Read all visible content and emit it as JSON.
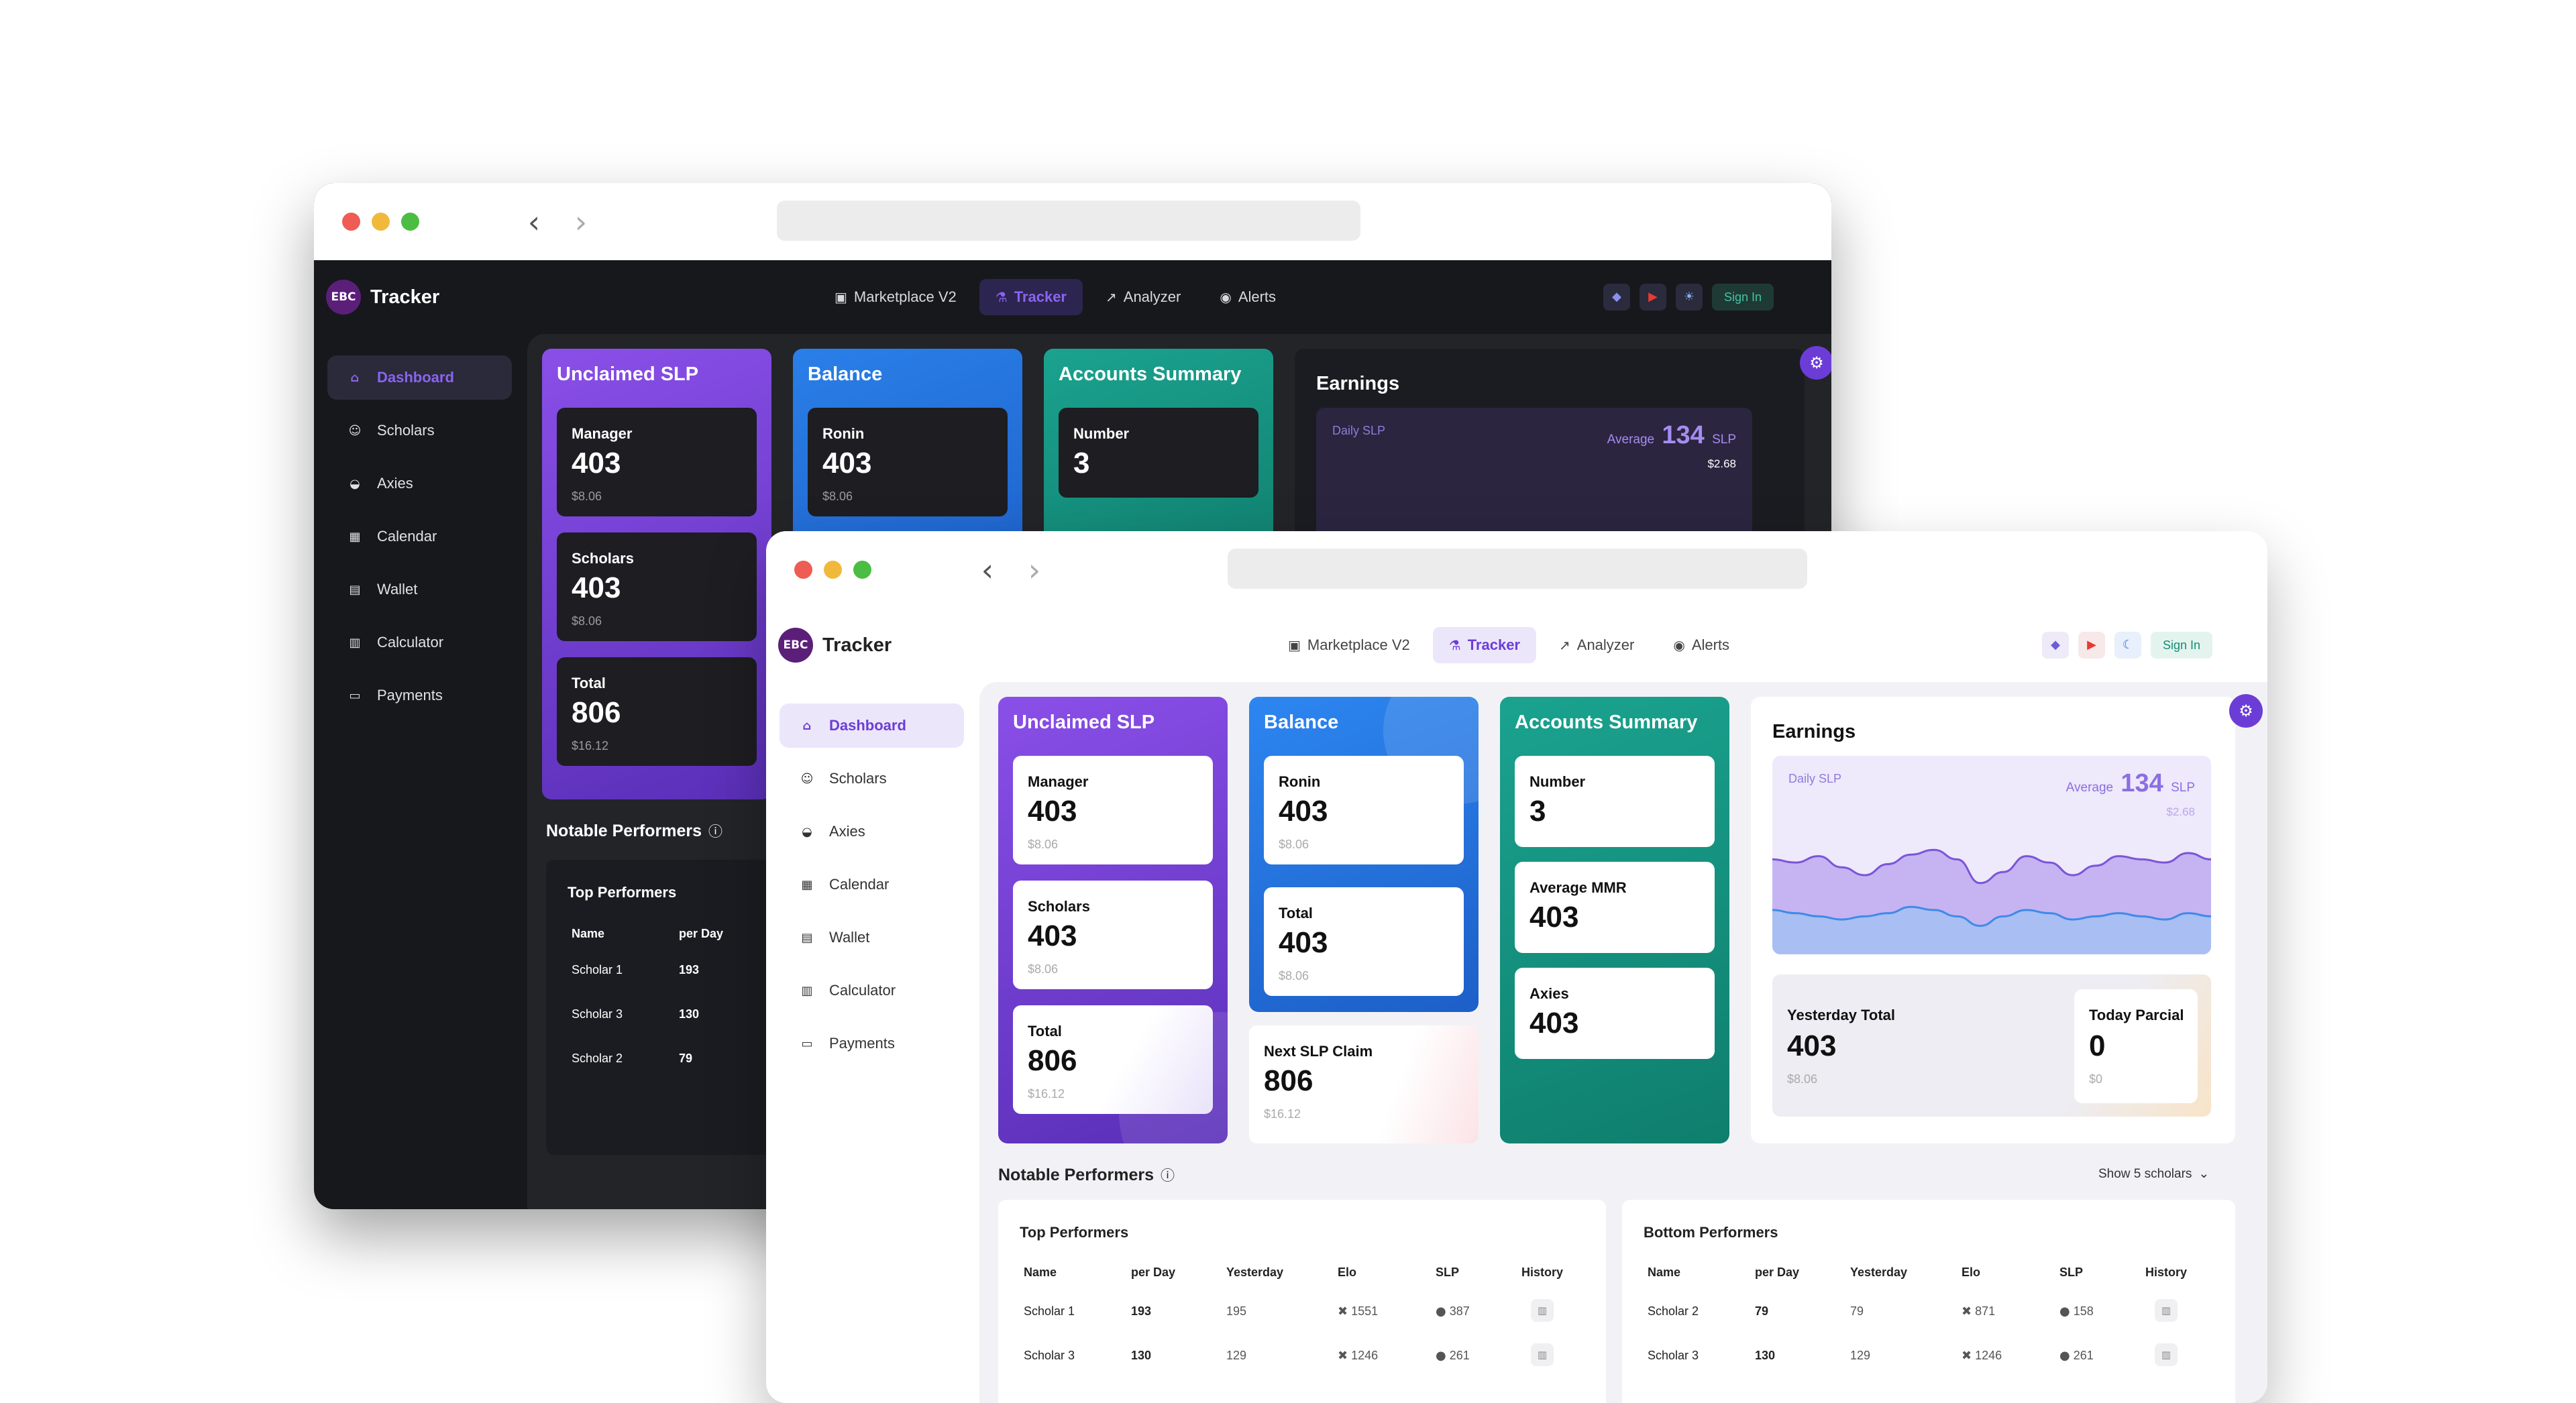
{
  "colors": {
    "accent": "#6c3dd6",
    "slp_purple": "#7c4de0",
    "balance_blue": "#2a7fe8",
    "summary_teal": "#14907d",
    "dot_red": "#ee5c53",
    "dot_yellow": "#f0b93c",
    "dot_green": "#4cbd43"
  },
  "browser": {
    "back_icon": "chevron-left-icon",
    "forward_icon": "chevron-right-icon"
  },
  "app": {
    "logo_text": "EBC",
    "name": "Tracker"
  },
  "topnav": [
    {
      "label": "Marketplace V2",
      "icon": "storefront-icon"
    },
    {
      "label": "Tracker",
      "icon": "flask-icon",
      "active": true
    },
    {
      "label": "Analyzer",
      "icon": "chart-icon"
    },
    {
      "label": "Alerts",
      "icon": "broadcast-icon"
    }
  ],
  "actions": {
    "sign_in": "Sign In",
    "icons": [
      "discord-icon",
      "youtube-icon",
      "theme-toggle-icon"
    ]
  },
  "sidebar": [
    {
      "label": "Dashboard",
      "icon": "home-icon",
      "active": true
    },
    {
      "label": "Scholars",
      "icon": "user-icon"
    },
    {
      "label": "Axies",
      "icon": "axie-icon"
    },
    {
      "label": "Calendar",
      "icon": "calendar-icon"
    },
    {
      "label": "Wallet",
      "icon": "wallet-icon"
    },
    {
      "label": "Calculator",
      "icon": "calculator-icon"
    },
    {
      "label": "Payments",
      "icon": "card-icon"
    }
  ],
  "unclaimed": {
    "title": "Unclaimed SLP",
    "items": [
      {
        "label": "Manager",
        "value": "403",
        "sub": "$8.06"
      },
      {
        "label": "Scholars",
        "value": "403",
        "sub": "$8.06"
      },
      {
        "label": "Total",
        "value": "806",
        "sub": "$16.12"
      }
    ]
  },
  "balance": {
    "title": "Balance",
    "items": [
      {
        "label": "Ronin",
        "value": "403",
        "sub": "$8.06"
      },
      {
        "label": "Total",
        "value": "403",
        "sub": "$8.06"
      }
    ],
    "next_claim": {
      "label": "Next SLP Claim",
      "value": "806",
      "sub": "$16.12"
    }
  },
  "summary": {
    "title": "Accounts Summary",
    "items": [
      {
        "label": "Number",
        "value": "3"
      },
      {
        "label": "Average MMR",
        "value": "403"
      },
      {
        "label": "Axies",
        "value": "403"
      }
    ]
  },
  "earnings": {
    "title": "Earnings",
    "chart_label": "Daily SLP",
    "average_label": "Average",
    "average_value": "134",
    "average_unit": "SLP",
    "average_usd": "$2.68",
    "yesterday": {
      "label": "Yesterday Total",
      "value": "403",
      "sub": "$8.06"
    },
    "today": {
      "label": "Today Parcial",
      "value": "0",
      "sub": "$0"
    }
  },
  "chart_data": {
    "type": "area",
    "title": "Daily SLP",
    "series": [
      {
        "values": [
          60,
          58,
          62,
          55,
          50,
          57,
          63,
          66,
          60,
          45,
          52,
          62,
          58,
          50,
          56,
          62,
          60,
          58,
          64,
          60
        ]
      },
      {
        "values": [
          28,
          26,
          24,
          22,
          24,
          26,
          30,
          28,
          24,
          18,
          24,
          28,
          26,
          22,
          24,
          26,
          24,
          22,
          26,
          24
        ]
      }
    ],
    "ylim": [
      0,
      100
    ],
    "grid": false,
    "legend": "none"
  },
  "notable": {
    "title": "Notable Performers",
    "filter": "Show 5 scholars",
    "top": {
      "title": "Top Performers",
      "columns": [
        "Name",
        "per Day",
        "Yesterday",
        "Elo",
        "SLP",
        "History"
      ],
      "rows": [
        {
          "name": "Scholar 1",
          "per_day": "193",
          "yesterday": "195",
          "elo": "1551",
          "slp": "387"
        },
        {
          "name": "Scholar 3",
          "per_day": "130",
          "yesterday": "129",
          "elo": "1246",
          "slp": "261"
        },
        {
          "name": "Scholar 2",
          "per_day": "79"
        }
      ]
    },
    "bottom": {
      "title": "Bottom Performers",
      "columns": [
        "Name",
        "per Day",
        "Yesterday",
        "Elo",
        "SLP",
        "History"
      ],
      "rows": [
        {
          "name": "Scholar 2",
          "per_day": "79",
          "yesterday": "79",
          "elo": "871",
          "slp": "158"
        },
        {
          "name": "Scholar 3",
          "per_day": "130",
          "yesterday": "129",
          "elo": "1246",
          "slp": "261"
        }
      ]
    }
  }
}
